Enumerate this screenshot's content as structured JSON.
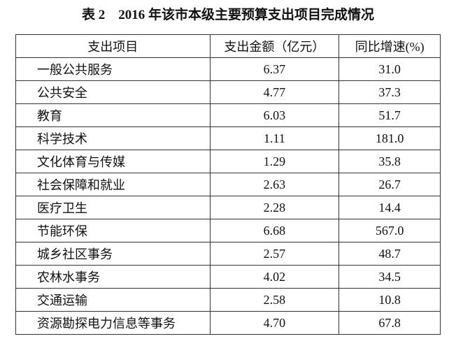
{
  "header": {
    "title": "表 2　2016 年该市本级主要预算支出项目完成情况"
  },
  "table": {
    "columns": [
      "支出项目",
      "支出金额（亿元）",
      "同比增速(%)"
    ],
    "rows": [
      [
        "一般公共服务",
        "6.37",
        "31.0"
      ],
      [
        "公共安全",
        "4.77",
        "37.3"
      ],
      [
        "教育",
        "6.03",
        "51.7"
      ],
      [
        "科学技术",
        "1.11",
        "181.0"
      ],
      [
        "文化体育与传媒",
        "1.29",
        "35.8"
      ],
      [
        "社会保障和就业",
        "2.63",
        "26.7"
      ],
      [
        "医疗卫生",
        "2.28",
        "14.4"
      ],
      [
        "节能环保",
        "6.68",
        "567.0"
      ],
      [
        "城乡社区事务",
        "2.57",
        "48.7"
      ],
      [
        "农林水事务",
        "4.02",
        "34.5"
      ],
      [
        "交通运输",
        "2.58",
        "10.8"
      ],
      [
        "资源勘探电力信息等事务",
        "4.70",
        "67.8"
      ]
    ]
  }
}
